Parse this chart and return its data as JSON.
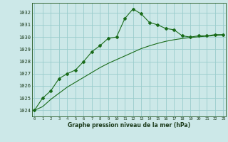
{
  "x": [
    0,
    1,
    2,
    3,
    4,
    5,
    6,
    7,
    8,
    9,
    10,
    11,
    12,
    13,
    14,
    15,
    16,
    17,
    18,
    19,
    20,
    21,
    22,
    23
  ],
  "y_main": [
    1024.0,
    1025.0,
    1025.6,
    1026.6,
    1027.0,
    1027.3,
    1028.0,
    1028.8,
    1029.3,
    1029.9,
    1030.0,
    1031.5,
    1032.3,
    1031.9,
    1031.2,
    1031.0,
    1030.7,
    1030.6,
    1030.1,
    1030.0,
    1030.1,
    1030.1,
    1030.2,
    1030.2
  ],
  "y_smooth": [
    1024.0,
    1024.3,
    1024.9,
    1025.4,
    1025.9,
    1026.3,
    1026.7,
    1027.1,
    1027.5,
    1027.85,
    1028.15,
    1028.45,
    1028.75,
    1029.05,
    1029.28,
    1029.48,
    1029.65,
    1029.78,
    1029.88,
    1029.96,
    1030.02,
    1030.07,
    1030.12,
    1030.17
  ],
  "bg_color": "#cce8e8",
  "grid_color": "#99cccc",
  "line_color": "#1a6b1a",
  "xlabel": "Graphe pression niveau de la mer (hPa)",
  "ylim": [
    1023.5,
    1032.8
  ],
  "yticks": [
    1024,
    1025,
    1026,
    1027,
    1028,
    1029,
    1030,
    1031,
    1032
  ],
  "xticks": [
    0,
    1,
    2,
    3,
    4,
    5,
    6,
    7,
    8,
    9,
    10,
    11,
    12,
    13,
    14,
    15,
    16,
    17,
    18,
    19,
    20,
    21,
    22,
    23
  ]
}
